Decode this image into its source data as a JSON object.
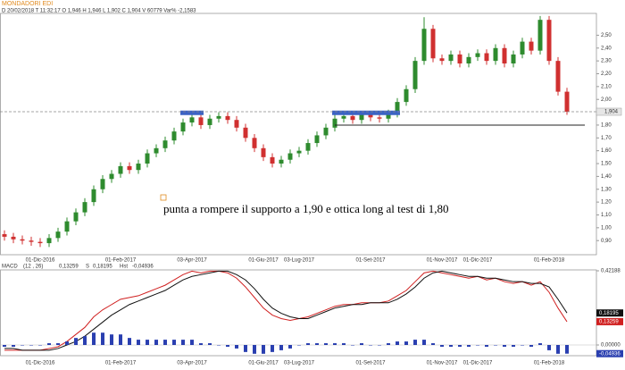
{
  "header": {
    "symbol": "MONDADORI EDI",
    "info": "D 20/02/2018  T 11:32:17  O 1,946  H 1,946  L 1,902  C 1,904  V 60779  Var% -2,1583"
  },
  "chart_data": [
    {
      "type": "candlestick",
      "categories": [
        null,
        null,
        null,
        null,
        "01-Dic-2016",
        null,
        null,
        null,
        null,
        null,
        null,
        null,
        null,
        "01-Feb-2017",
        null,
        null,
        null,
        null,
        null,
        null,
        null,
        "03-Apr-2017",
        null,
        null,
        null,
        null,
        null,
        null,
        null,
        "01-Giu-2017",
        null,
        null,
        null,
        "03-Lug-2017",
        null,
        null,
        null,
        null,
        null,
        null,
        null,
        "01-Set-2017",
        null,
        null,
        null,
        null,
        null,
        null,
        null,
        "01-Nov-2017",
        null,
        null,
        null,
        "01-Dic-2017",
        null,
        null,
        null,
        null,
        null,
        null,
        null,
        "01-Feb-2018",
        null,
        null
      ],
      "open": [
        0.95,
        0.93,
        0.91,
        0.9,
        0.89,
        0.88,
        0.92,
        0.97,
        1.05,
        1.12,
        1.2,
        1.3,
        1.38,
        1.42,
        1.48,
        1.45,
        1.5,
        1.58,
        1.62,
        1.68,
        1.75,
        1.82,
        1.86,
        1.8,
        1.85,
        1.87,
        1.84,
        1.78,
        1.7,
        1.62,
        1.55,
        1.5,
        1.53,
        1.58,
        1.6,
        1.66,
        1.72,
        1.78,
        1.85,
        1.87,
        1.84,
        1.88,
        1.86,
        1.85,
        1.89,
        1.98,
        2.08,
        2.3,
        2.55,
        2.32,
        2.3,
        2.35,
        2.28,
        2.33,
        2.36,
        2.3,
        2.4,
        2.28,
        2.35,
        2.45,
        2.38,
        2.62,
        2.3,
        2.06
      ],
      "high": [
        0.98,
        0.96,
        0.94,
        0.93,
        0.92,
        0.95,
        1.0,
        1.08,
        1.15,
        1.23,
        1.33,
        1.41,
        1.45,
        1.51,
        1.51,
        1.53,
        1.61,
        1.65,
        1.71,
        1.78,
        1.85,
        1.89,
        1.89,
        1.88,
        1.9,
        1.9,
        1.87,
        1.81,
        1.73,
        1.65,
        1.58,
        1.56,
        1.61,
        1.63,
        1.69,
        1.75,
        1.81,
        1.88,
        1.9,
        1.9,
        1.91,
        1.91,
        1.89,
        1.92,
        2.01,
        2.11,
        2.33,
        2.64,
        2.58,
        2.35,
        2.38,
        2.38,
        2.36,
        2.39,
        2.39,
        2.43,
        2.43,
        2.38,
        2.48,
        2.48,
        2.65,
        2.65,
        2.33,
        2.09
      ],
      "low": [
        0.9,
        0.88,
        0.87,
        0.86,
        0.85,
        0.85,
        0.89,
        0.94,
        1.02,
        1.09,
        1.17,
        1.27,
        1.35,
        1.39,
        1.42,
        1.42,
        1.47,
        1.55,
        1.59,
        1.65,
        1.72,
        1.79,
        1.77,
        1.77,
        1.82,
        1.81,
        1.75,
        1.67,
        1.59,
        1.52,
        1.47,
        1.47,
        1.5,
        1.55,
        1.57,
        1.63,
        1.69,
        1.75,
        1.82,
        1.81,
        1.81,
        1.83,
        1.82,
        1.82,
        1.86,
        1.95,
        2.05,
        2.27,
        2.29,
        2.27,
        2.27,
        2.25,
        2.25,
        2.3,
        2.27,
        2.27,
        2.25,
        2.25,
        2.32,
        2.35,
        2.35,
        2.27,
        2.03,
        1.88
      ],
      "close": [
        0.93,
        0.91,
        0.9,
        0.89,
        0.88,
        0.92,
        0.97,
        1.05,
        1.12,
        1.2,
        1.3,
        1.38,
        1.42,
        1.48,
        1.45,
        1.5,
        1.58,
        1.62,
        1.68,
        1.75,
        1.82,
        1.86,
        1.8,
        1.85,
        1.87,
        1.84,
        1.78,
        1.7,
        1.62,
        1.55,
        1.5,
        1.53,
        1.58,
        1.6,
        1.66,
        1.72,
        1.78,
        1.85,
        1.87,
        1.84,
        1.88,
        1.86,
        1.85,
        1.89,
        1.98,
        2.08,
        2.3,
        2.55,
        2.32,
        2.3,
        2.35,
        2.28,
        2.33,
        2.36,
        2.3,
        2.4,
        2.28,
        2.35,
        2.45,
        2.38,
        2.62,
        2.3,
        2.06,
        1.904
      ],
      "up_color": "#2e8b2e",
      "down_color": "#d03030",
      "ylim": [
        0.79,
        2.67
      ],
      "yticks": [
        {
          "value": 0.9,
          "label": "0,90"
        },
        {
          "value": 1.0,
          "label": "1,00"
        },
        {
          "value": 1.1,
          "label": "1,10"
        },
        {
          "value": 1.2,
          "label": "1,20"
        },
        {
          "value": 1.3,
          "label": "1,30"
        },
        {
          "value": 1.4,
          "label": "1,40"
        },
        {
          "value": 1.5,
          "label": "1,50"
        },
        {
          "value": 1.6,
          "label": "1,60"
        },
        {
          "value": 1.7,
          "label": "1,70"
        },
        {
          "value": 1.8,
          "label": "1,80"
        },
        {
          "value": 2.0,
          "label": "2,00"
        },
        {
          "value": 2.1,
          "label": "2,10"
        },
        {
          "value": 2.2,
          "label": "2,20"
        },
        {
          "value": 2.3,
          "label": "2,30"
        },
        {
          "value": 2.4,
          "label": "2,40"
        },
        {
          "value": 2.5,
          "label": "2,50"
        }
      ],
      "last_price": {
        "value": 1.904,
        "label": "1,904"
      },
      "zones": [
        {
          "value": 1.895,
          "from": 20,
          "to": 22,
          "color": "#3b63c4"
        },
        {
          "value": 1.895,
          "from": 37,
          "to": 44,
          "color": "#3b63c4"
        }
      ],
      "support": {
        "value": 1.8,
        "from": 37,
        "to": 65,
        "color": "#222222"
      },
      "annotation": "punta a rompere il supporto a 1,90 e ottica long al test di 1,80"
    },
    {
      "type": "macd",
      "title": "MACD",
      "params": "(12 , 26)",
      "series": [
        {
          "name": "MACD",
          "color": "#d02020",
          "value_label": "0,13259",
          "values": [
            -0.03,
            -0.03,
            -0.03,
            -0.03,
            -0.03,
            -0.02,
            -0.01,
            0.02,
            0.06,
            0.1,
            0.16,
            0.2,
            0.23,
            0.26,
            0.27,
            0.28,
            0.3,
            0.32,
            0.34,
            0.37,
            0.4,
            0.42,
            0.41,
            0.42,
            0.42,
            0.41,
            0.38,
            0.33,
            0.27,
            0.21,
            0.17,
            0.15,
            0.14,
            0.15,
            0.16,
            0.18,
            0.2,
            0.22,
            0.23,
            0.23,
            0.24,
            0.24,
            0.24,
            0.25,
            0.28,
            0.31,
            0.36,
            0.41,
            0.42,
            0.41,
            0.4,
            0.39,
            0.38,
            0.39,
            0.37,
            0.38,
            0.36,
            0.35,
            0.36,
            0.34,
            0.36,
            0.3,
            0.21,
            0.13259
          ]
        },
        {
          "name": "S",
          "color": "#111111",
          "value_label": "0,18195",
          "values": [
            -0.02,
            -0.02,
            -0.03,
            -0.03,
            -0.03,
            -0.03,
            -0.02,
            0.0,
            0.02,
            0.05,
            0.09,
            0.13,
            0.17,
            0.2,
            0.23,
            0.25,
            0.27,
            0.29,
            0.31,
            0.34,
            0.37,
            0.39,
            0.4,
            0.41,
            0.42,
            0.42,
            0.4,
            0.37,
            0.32,
            0.26,
            0.21,
            0.18,
            0.16,
            0.15,
            0.15,
            0.17,
            0.19,
            0.21,
            0.22,
            0.23,
            0.23,
            0.24,
            0.24,
            0.24,
            0.26,
            0.29,
            0.33,
            0.38,
            0.41,
            0.42,
            0.41,
            0.4,
            0.39,
            0.39,
            0.38,
            0.38,
            0.37,
            0.36,
            0.36,
            0.35,
            0.35,
            0.33,
            0.26,
            0.18195
          ]
        },
        {
          "name": "Hst",
          "color": "#2a3fb0",
          "value_label": "-0,04936",
          "values": [
            -0.01,
            -0.01,
            0,
            0,
            0,
            0.01,
            0.01,
            0.02,
            0.04,
            0.05,
            0.07,
            0.07,
            0.06,
            0.06,
            0.04,
            0.03,
            0.03,
            0.03,
            0.03,
            0.03,
            0.03,
            0.03,
            0.01,
            0.01,
            0,
            -0.01,
            -0.02,
            -0.04,
            -0.05,
            -0.05,
            -0.04,
            -0.03,
            -0.02,
            0,
            0.01,
            0.01,
            0.01,
            0.01,
            0.01,
            0,
            0.01,
            0,
            0,
            0.01,
            0.02,
            0.02,
            0.03,
            0.03,
            0.01,
            -0.01,
            -0.01,
            -0.01,
            -0.01,
            0,
            -0.01,
            0,
            -0.01,
            -0.01,
            0,
            -0.01,
            0.01,
            -0.03,
            -0.05,
            -0.04936
          ]
        }
      ],
      "ylim": [
        -0.061,
        0.427
      ],
      "yticks": [
        {
          "value": 0.42188,
          "label": "0,42188"
        },
        {
          "value": 0,
          "label": "0,00000"
        }
      ]
    }
  ]
}
